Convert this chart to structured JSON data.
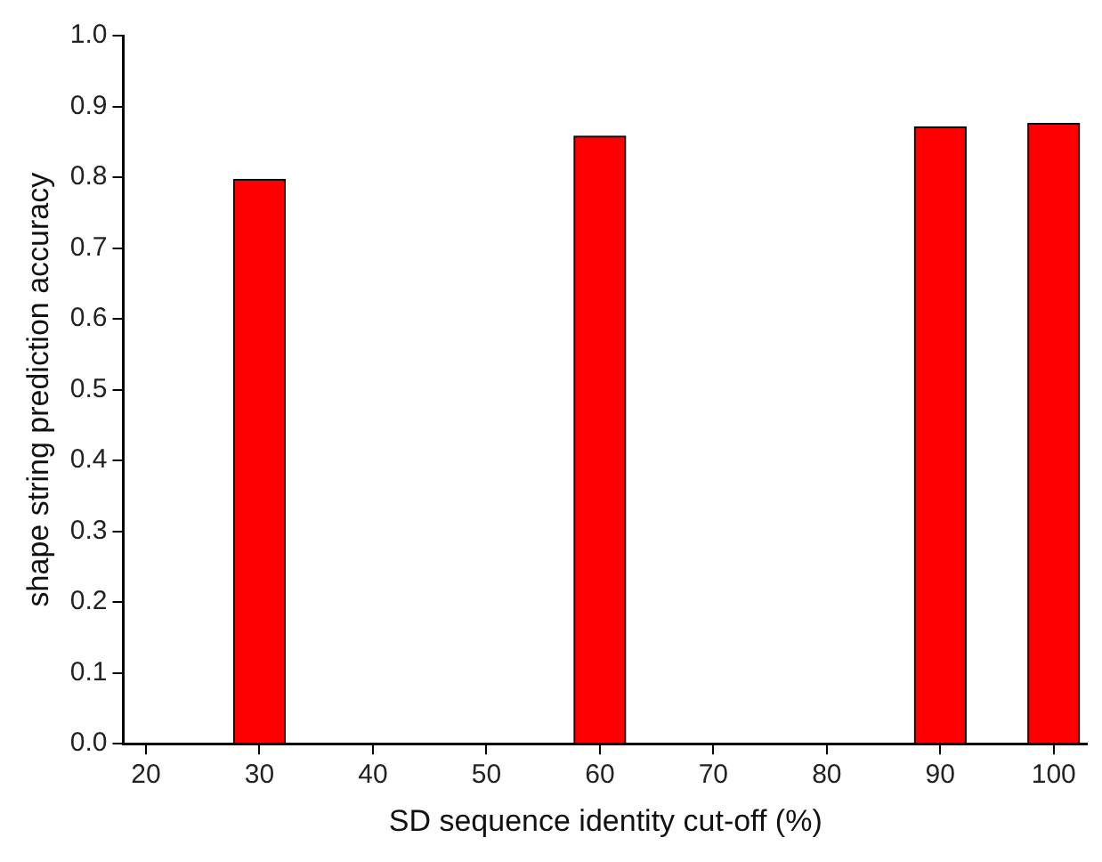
{
  "chart_data": {
    "type": "bar",
    "xlabel": "SD sequence identity cut-off (%)",
    "ylabel": "shape string prediction accuracy",
    "x": [
      30,
      60,
      90,
      100
    ],
    "values": [
      0.797,
      0.858,
      0.871,
      0.876
    ],
    "color": "#ff0000",
    "xlim": [
      18,
      103
    ],
    "xticks": [
      20,
      30,
      40,
      50,
      60,
      70,
      80,
      90,
      100
    ],
    "ylim": [
      0,
      1
    ],
    "yticks": [
      {
        "value": 0,
        "label": "0.0"
      },
      {
        "value": 0.1,
        "label": "0.1"
      },
      {
        "value": 0.2,
        "label": "0.2"
      },
      {
        "value": 0.3,
        "label": "0.3"
      },
      {
        "value": 0.4,
        "label": "0.4"
      },
      {
        "value": 0.5,
        "label": "0.5"
      },
      {
        "value": 0.6,
        "label": "0.6"
      },
      {
        "value": 0.7,
        "label": "0.7"
      },
      {
        "value": 0.8,
        "label": "0.8"
      },
      {
        "value": 0.9,
        "label": "0.9"
      },
      {
        "value": 1,
        "label": "1.0"
      }
    ],
    "grid": false,
    "legend": false
  }
}
